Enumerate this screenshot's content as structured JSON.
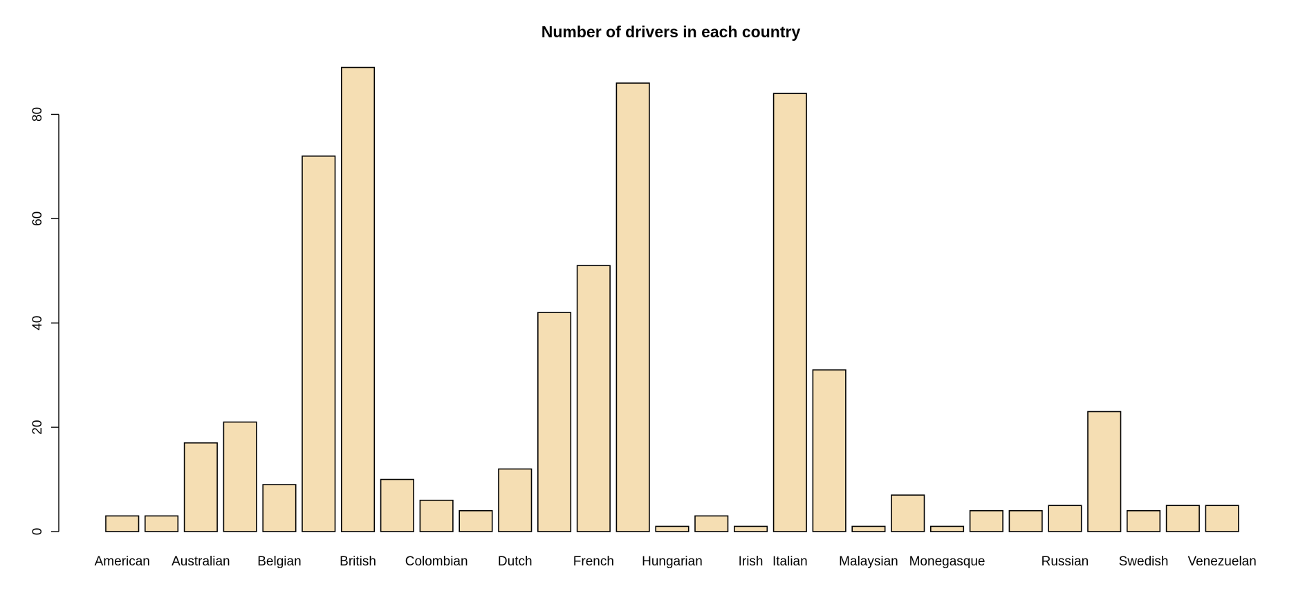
{
  "chart_data": {
    "type": "bar",
    "title": "Number of drivers in each country",
    "xlabel": "",
    "ylabel": "",
    "ylim": [
      0,
      90
    ],
    "yticks": [
      0,
      20,
      40,
      60,
      80
    ],
    "bar_color": "#f5deb3",
    "grid": false,
    "categories": [
      "American",
      "",
      "Australian",
      "",
      "Belgian",
      "",
      "British",
      "",
      "Colombian",
      "",
      "Dutch",
      "",
      "French",
      "",
      "Hungarian",
      "",
      "Irish",
      "Italian",
      "",
      "Malaysian",
      "",
      "Monegasque",
      "",
      "",
      "Russian",
      "",
      "Swedish",
      "",
      "Venezuelan"
    ],
    "values": [
      3,
      3,
      17,
      21,
      9,
      72,
      89,
      10,
      6,
      4,
      12,
      42,
      51,
      86,
      1,
      3,
      1,
      84,
      31,
      1,
      7,
      1,
      4,
      4,
      5,
      23,
      4,
      5,
      5
    ]
  }
}
